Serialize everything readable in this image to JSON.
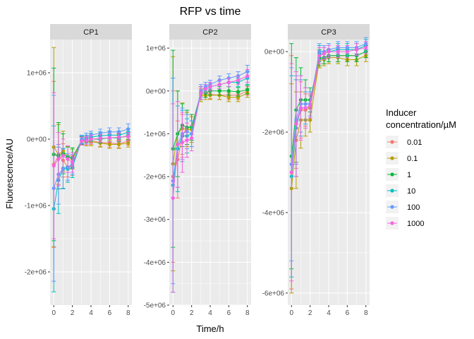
{
  "chart_data": {
    "type": "line",
    "title": "RFP vs time",
    "xlabel": "Time/h",
    "ylabel": "Fluorescence/AU",
    "x": [
      0,
      0.5,
      1,
      1.5,
      2,
      3,
      3.5,
      4,
      5,
      6,
      7,
      8
    ],
    "x_ticks": [
      0,
      2,
      4,
      6,
      8
    ],
    "legend": {
      "title_lines": [
        "Inducer",
        "concentration/µM"
      ],
      "placement": "right",
      "entries": [
        {
          "label": "0.01",
          "color": "#F8766D"
        },
        {
          "label": "0.1",
          "color": "#B79F00"
        },
        {
          "label": "1",
          "color": "#00BA38"
        },
        {
          "label": "10",
          "color": "#00BFC4"
        },
        {
          "label": "100",
          "color": "#619CFF"
        },
        {
          "label": "1000",
          "color": "#F564E3"
        }
      ]
    },
    "panels": [
      {
        "name": "CP1",
        "ylim": [
          -2500000,
          1500000
        ],
        "y_ticks": [
          -2000000,
          -1000000,
          0,
          1000000
        ],
        "y_tick_labels": [
          "-2e+06",
          "-1e+06",
          "0e+00",
          "1e+06"
        ],
        "series": [
          {
            "name": "0.01",
            "values": [
              -380000,
              -250000,
              -320000,
              -420000,
              -400000,
              -30000,
              -40000,
              -20000,
              -50000,
              -60000,
              -70000,
              -30000
            ],
            "errors": [
              1250000,
              500000,
              250000,
              150000,
              150000,
              60000,
              60000,
              60000,
              60000,
              60000,
              60000,
              60000
            ]
          },
          {
            "name": "0.1",
            "values": [
              -120000,
              -230000,
              -180000,
              -260000,
              -300000,
              -30000,
              -40000,
              -40000,
              -60000,
              -80000,
              -80000,
              -60000
            ],
            "errors": [
              1500000,
              450000,
              300000,
              150000,
              150000,
              60000,
              60000,
              60000,
              60000,
              60000,
              60000,
              60000
            ]
          },
          {
            "name": "1",
            "values": [
              -230000,
              -250000,
              -220000,
              -270000,
              -280000,
              -20000,
              -20000,
              0,
              0,
              20000,
              20000,
              50000
            ],
            "errors": [
              1300000,
              500000,
              300000,
              150000,
              150000,
              60000,
              60000,
              60000,
              60000,
              60000,
              60000,
              60000
            ]
          },
          {
            "name": "10",
            "values": [
              -1050000,
              -620000,
              -440000,
              -450000,
              -430000,
              -10000,
              0,
              30000,
              50000,
              60000,
              60000,
              100000
            ],
            "errors": [
              1250000,
              500000,
              300000,
              200000,
              150000,
              60000,
              60000,
              60000,
              60000,
              60000,
              60000,
              60000
            ]
          },
          {
            "name": "100",
            "values": [
              -740000,
              -530000,
              -450000,
              -420000,
              -380000,
              0,
              30000,
              60000,
              90000,
              110000,
              110000,
              150000
            ],
            "errors": [
              1400000,
              450000,
              300000,
              200000,
              150000,
              60000,
              60000,
              60000,
              60000,
              60000,
              60000,
              80000
            ]
          },
          {
            "name": "1000",
            "values": [
              -400000,
              -300000,
              -250000,
              -300000,
              -350000,
              -30000,
              -20000,
              0,
              10000,
              20000,
              30000,
              40000
            ],
            "errors": [
              1100000,
              400000,
              250000,
              200000,
              150000,
              60000,
              60000,
              60000,
              60000,
              60000,
              60000,
              60000
            ]
          }
        ]
      },
      {
        "name": "CP2",
        "ylim": [
          -5000000,
          1200000
        ],
        "y_ticks": [
          -5000000,
          -4000000,
          -3000000,
          -2000000,
          -1000000,
          0,
          1000000
        ],
        "y_tick_labels": [
          "-5e+06",
          "-4e+06",
          "-3e+06",
          "-2e+06",
          "-1e+06",
          "0e+00",
          "1e+06"
        ],
        "series": [
          {
            "name": "0.01",
            "values": [
              -2000000,
              -1600000,
              -1050000,
              -850000,
              -850000,
              -50000,
              -50000,
              -80000,
              -100000,
              -100000,
              -100000,
              0
            ],
            "errors": [
              2000000,
              900000,
              500000,
              400000,
              300000,
              150000,
              100000,
              100000,
              100000,
              100000,
              100000,
              100000
            ]
          },
          {
            "name": "0.1",
            "values": [
              -1700000,
              -1000000,
              -880000,
              -900000,
              -900000,
              -100000,
              -100000,
              -100000,
              -100000,
              -150000,
              -150000,
              -50000
            ],
            "errors": [
              2500000,
              1000000,
              600000,
              400000,
              300000,
              150000,
              100000,
              100000,
              100000,
              100000,
              100000,
              100000
            ]
          },
          {
            "name": "1",
            "values": [
              -1350000,
              -1000000,
              -800000,
              -850000,
              -850000,
              -50000,
              -50000,
              0,
              0,
              0,
              -20000,
              30000
            ],
            "errors": [
              2300000,
              1000000,
              500000,
              400000,
              300000,
              150000,
              100000,
              100000,
              100000,
              100000,
              100000,
              100000
            ]
          },
          {
            "name": "10",
            "values": [
              -2200000,
              -1350000,
              -1050000,
              -1050000,
              -1000000,
              -50000,
              50000,
              100000,
              150000,
              200000,
              200000,
              300000
            ],
            "errors": [
              2500000,
              1000000,
              600000,
              400000,
              300000,
              150000,
              100000,
              100000,
              100000,
              100000,
              100000,
              150000
            ]
          },
          {
            "name": "100",
            "values": [
              -2100000,
              -1250000,
              -1000000,
              -950000,
              -1000000,
              0,
              100000,
              150000,
              250000,
              300000,
              350000,
              450000
            ],
            "errors": [
              2400000,
              1000000,
              600000,
              400000,
              300000,
              150000,
              100000,
              100000,
              100000,
              100000,
              100000,
              150000
            ]
          },
          {
            "name": "1000",
            "values": [
              -2500000,
              -1250000,
              -1200000,
              -1150000,
              -1100000,
              -50000,
              50000,
              100000,
              150000,
              200000,
              250000,
              350000
            ],
            "errors": [
              2200000,
              1000000,
              700000,
              400000,
              300000,
              150000,
              100000,
              100000,
              100000,
              100000,
              100000,
              150000
            ]
          }
        ]
      },
      {
        "name": "CP3",
        "ylim": [
          -6300000,
          300000
        ],
        "y_ticks": [
          -6000000,
          -4000000,
          -2000000,
          0
        ],
        "y_tick_labels": [
          "-6e+06",
          "-4e+06",
          "-2e+06",
          "0e+00"
        ],
        "series": [
          {
            "name": "0.01",
            "values": [
              -3000000,
              -1800000,
              -1450000,
              -1450000,
              -1400000,
              -200000,
              -150000,
              -100000,
              -100000,
              -100000,
              -100000,
              0
            ],
            "errors": [
              2900000,
              1100000,
              700000,
              400000,
              300000,
              200000,
              150000,
              150000,
              150000,
              150000,
              150000,
              150000
            ]
          },
          {
            "name": "0.1",
            "values": [
              -3400000,
              -2200000,
              -1700000,
              -1700000,
              -1700000,
              -200000,
              -200000,
              -150000,
              -150000,
              -200000,
              -200000,
              -100000
            ],
            "errors": [
              2600000,
              1200000,
              700000,
              400000,
              300000,
              200000,
              150000,
              150000,
              150000,
              150000,
              150000,
              150000
            ]
          },
          {
            "name": "1",
            "values": [
              -2600000,
              -1450000,
              -1200000,
              -1200000,
              -1200000,
              -150000,
              -150000,
              -100000,
              -100000,
              -100000,
              -100000,
              0
            ],
            "errors": [
              2800000,
              1300000,
              800000,
              500000,
              300000,
              200000,
              150000,
              150000,
              150000,
              150000,
              150000,
              150000
            ]
          },
          {
            "name": "10",
            "values": [
              -3100000,
              -1900000,
              -1400000,
              -1400000,
              -1350000,
              -50000,
              -50000,
              0,
              50000,
              50000,
              50000,
              150000
            ],
            "errors": [
              2500000,
              1200000,
              700000,
              400000,
              300000,
              200000,
              150000,
              150000,
              150000,
              150000,
              150000,
              150000
            ]
          },
          {
            "name": "100",
            "values": [
              -2800000,
              -1700000,
              -1300000,
              -1300000,
              -1300000,
              0,
              0,
              50000,
              100000,
              100000,
              100000,
              200000
            ],
            "errors": [
              2400000,
              1100000,
              700000,
              400000,
              300000,
              200000,
              150000,
              150000,
              150000,
              150000,
              150000,
              150000
            ]
          },
          {
            "name": "1000",
            "values": [
              -3000000,
              -1800000,
              -1400000,
              -1400000,
              -1350000,
              -100000,
              -50000,
              0,
              0,
              0,
              50000,
              100000
            ],
            "errors": [
              2700000,
              1300000,
              800000,
              500000,
              300000,
              200000,
              150000,
              150000,
              150000,
              150000,
              150000,
              150000
            ]
          }
        ]
      }
    ]
  }
}
